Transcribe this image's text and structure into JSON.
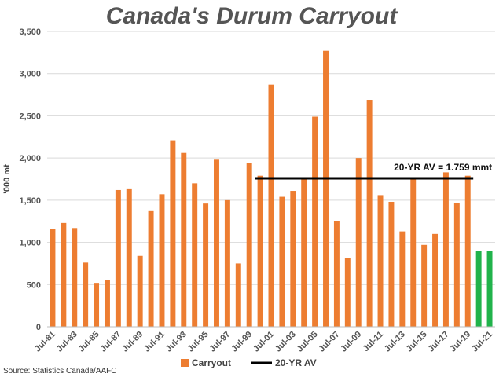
{
  "chart_data": {
    "type": "bar",
    "title": "Canada's Durum Carryout",
    "ylabel": "'000 mt",
    "xlabel": "",
    "ylim": [
      0,
      3500
    ],
    "yticks": [
      0,
      500,
      1000,
      1500,
      2000,
      2500,
      3000,
      3500
    ],
    "ytick_labels": [
      "0",
      "500",
      "1,000",
      "1,500",
      "2,000",
      "2,500",
      "3,000",
      "3,500"
    ],
    "grid": true,
    "categories": [
      "Jul-81",
      "Jul-82",
      "Jul-83",
      "Jul-84",
      "Jul-85",
      "Jul-86",
      "Jul-87",
      "Jul-88",
      "Jul-89",
      "Jul-90",
      "Jul-91",
      "Jul-92",
      "Jul-93",
      "Jul-94",
      "Jul-95",
      "Jul-96",
      "Jul-97",
      "Jul-98",
      "Jul-99",
      "Jul-00",
      "Jul-01",
      "Jul-02",
      "Jul-03",
      "Jul-04",
      "Jul-05",
      "Jul-06",
      "Jul-07",
      "Jul-08",
      "Jul-09",
      "Jul-10",
      "Jul-11",
      "Jul-12",
      "Jul-13",
      "Jul-14",
      "Jul-15",
      "Jul-16",
      "Jul-17",
      "Jul-18",
      "Jul-19",
      "Jul-20",
      "Jul-21"
    ],
    "visible_tick_labels": [
      "Jul-81",
      "Jul-83",
      "Jul-85",
      "Jul-87",
      "Jul-89",
      "Jul-91",
      "Jul-93",
      "Jul-95",
      "Jul-97",
      "Jul-99",
      "Jul-01",
      "Jul-03",
      "Jul-05",
      "Jul-07",
      "Jul-09",
      "Jul-11",
      "Jul-13",
      "Jul-15",
      "Jul-17",
      "Jul-19",
      "Jul-21"
    ],
    "values": [
      1160,
      1230,
      1170,
      760,
      520,
      550,
      1620,
      1630,
      840,
      1370,
      1570,
      2210,
      2060,
      1700,
      1460,
      1980,
      1500,
      750,
      1940,
      1790,
      2870,
      1540,
      1610,
      1750,
      2490,
      3270,
      1250,
      810,
      2000,
      2690,
      1560,
      1480,
      1130,
      1760,
      970,
      1100,
      1830,
      1470,
      1790,
      900,
      900
    ],
    "colors": {
      "carryout": "#ED7D31",
      "forecast": "#21B34B",
      "average_line": "#000000",
      "grid": "#D9D9D9"
    },
    "forecast_categories": [
      "Jul-20",
      "Jul-21"
    ],
    "average_line": {
      "value": 1759,
      "from": "Jul-00",
      "to": "Jul-19",
      "label": "20-YR AV = 1.759 mmt"
    },
    "legend": {
      "placement": "bottom",
      "entries": [
        {
          "label": "Carryout",
          "color": "#ED7D31",
          "marker": "square"
        },
        {
          "label": "20-YR AV",
          "color": "#000000",
          "marker": "line"
        }
      ]
    },
    "source": "Source: Statistics Canada/AAFC"
  }
}
